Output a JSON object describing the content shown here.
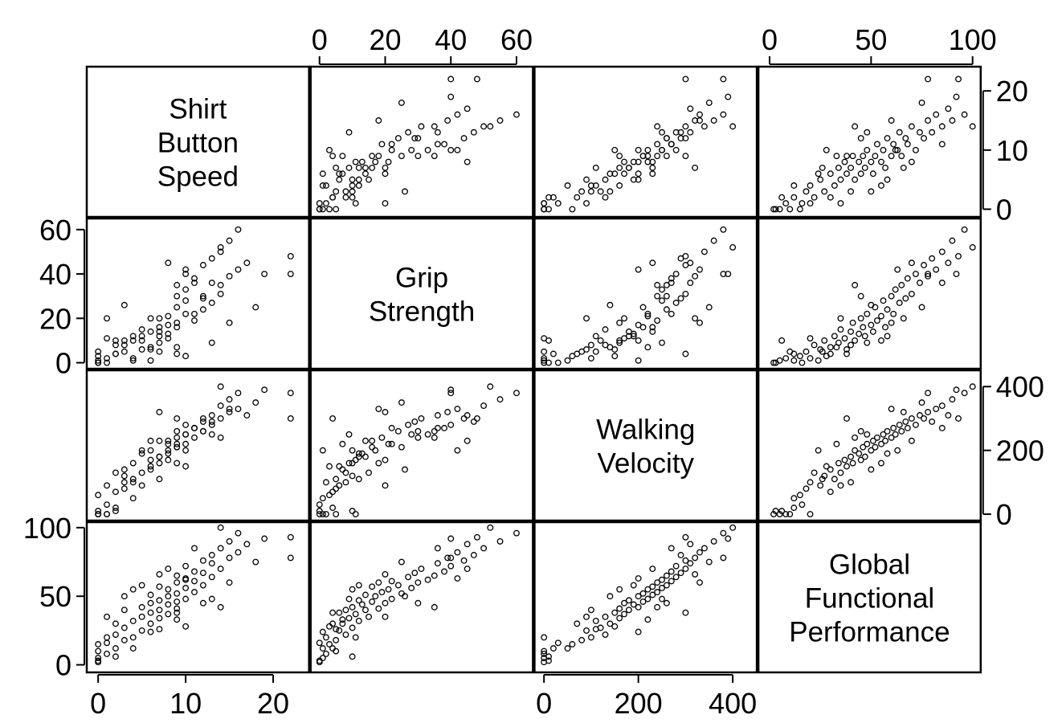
{
  "chart_data": {
    "type": "scatter",
    "color": "#000000",
    "variables": [
      {
        "label": [
          "Shirt",
          "Button",
          "Speed"
        ],
        "lim": [
          -1.3,
          24.1
        ],
        "ticks": [
          0,
          10,
          20
        ],
        "values": [
          0,
          1,
          0,
          2,
          0,
          3,
          4,
          2,
          5,
          3,
          6,
          4,
          7,
          5,
          8,
          6,
          7,
          9,
          5,
          8,
          6,
          9,
          7,
          10,
          8,
          6,
          9,
          11,
          8,
          10,
          7,
          12,
          9,
          11,
          10,
          13,
          9,
          12,
          11,
          14,
          10,
          13,
          12,
          15,
          13,
          16,
          14,
          17,
          15,
          22,
          16,
          14,
          22,
          0,
          0,
          2,
          3,
          10,
          1,
          4,
          12,
          15,
          6,
          9,
          3,
          7,
          8,
          11,
          19,
          1,
          2,
          14,
          9,
          5,
          18,
          4,
          1,
          7,
          13,
          10
        ]
      },
      {
        "label": [
          "Grip",
          "Strength"
        ],
        "lim": [
          -2.7,
          65
        ],
        "ticks": [
          0,
          20,
          40,
          60
        ],
        "values": [
          1,
          2,
          0,
          4,
          3,
          5,
          2,
          8,
          6,
          10,
          7,
          12,
          9,
          15,
          11,
          6,
          14,
          18,
          10,
          13,
          20,
          16,
          12,
          22,
          17,
          14,
          25,
          19,
          21,
          28,
          16,
          24,
          30,
          22,
          33,
          27,
          35,
          29,
          38,
          31,
          40,
          36,
          44,
          39,
          47,
          42,
          50,
          45,
          55,
          48,
          60,
          52,
          40,
          0,
          5,
          4,
          8,
          3,
          20,
          10,
          30,
          18,
          1,
          7,
          26,
          20,
          45,
          36,
          40,
          0,
          10,
          35,
          4,
          12,
          25,
          1,
          11,
          5,
          9,
          42
        ]
      },
      {
        "label": [
          "Walking",
          "Velocity"
        ],
        "lim": [
          -20,
          451
        ],
        "ticks": [
          0,
          200,
          400
        ],
        "values": [
          0,
          0,
          10,
          20,
          60,
          80,
          100,
          130,
          90,
          120,
          140,
          110,
          160,
          130,
          170,
          150,
          180,
          160,
          200,
          190,
          170,
          210,
          180,
          220,
          200,
          230,
          210,
          240,
          220,
          250,
          230,
          260,
          240,
          270,
          250,
          280,
          260,
          290,
          270,
          300,
          280,
          310,
          300,
          320,
          290,
          330,
          340,
          310,
          360,
          300,
          380,
          400,
          380,
          0,
          0,
          70,
          100,
          150,
          90,
          160,
          260,
          330,
          200,
          220,
          140,
          320,
          230,
          270,
          390,
          30,
          10,
          240,
          300,
          190,
          350,
          50,
          0,
          110,
          250,
          200
        ]
      },
      {
        "label": [
          "Global",
          "Functional",
          "Performance"
        ],
        "lim": [
          -5.5,
          104
        ],
        "ticks": [
          0,
          50,
          100
        ],
        "values": [
          5,
          8,
          3,
          12,
          15,
          18,
          20,
          22,
          25,
          27,
          30,
          32,
          34,
          35,
          37,
          38,
          40,
          41,
          42,
          44,
          45,
          46,
          47,
          48,
          50,
          51,
          52,
          53,
          55,
          56,
          57,
          58,
          60,
          61,
          62,
          64,
          65,
          67,
          68,
          70,
          72,
          74,
          76,
          78,
          80,
          82,
          85,
          88,
          90,
          93,
          96,
          100,
          78,
          2,
          10,
          30,
          40,
          28,
          35,
          55,
          45,
          60,
          24,
          33,
          50,
          66,
          70,
          85,
          92,
          16,
          6,
          42,
          38,
          58,
          75,
          12,
          20,
          26,
          48,
          63
        ]
      }
    ]
  }
}
